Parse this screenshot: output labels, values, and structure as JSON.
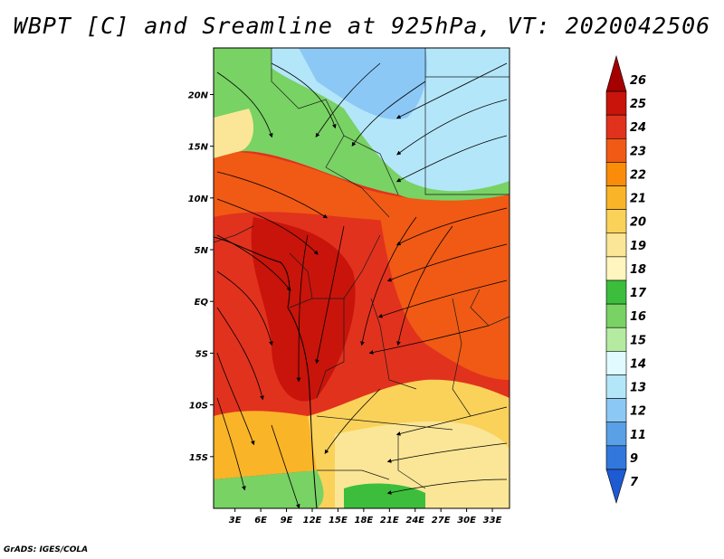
{
  "title": "WBPT [C] and Sreamline at 925hPa, VT: 2020042506",
  "credit": "GrADS: IGES/COLA",
  "map": {
    "lon_labels": [
      "3E",
      "6E",
      "9E",
      "12E",
      "15E",
      "18E",
      "21E",
      "24E",
      "27E",
      "30E",
      "33E"
    ],
    "lon_values": [
      3,
      6,
      9,
      12,
      15,
      18,
      21,
      24,
      27,
      30,
      33
    ],
    "lat_labels": [
      "20N",
      "15N",
      "10N",
      "5N",
      "EQ",
      "5S",
      "10S",
      "15S"
    ],
    "lat_values": [
      20,
      15,
      10,
      5,
      0,
      -5,
      -10,
      -15
    ],
    "lon_range": [
      0.5,
      35
    ],
    "lat_range": [
      -20,
      24.5
    ]
  },
  "colorbar": {
    "labels": [
      "26",
      "25",
      "24",
      "23",
      "22",
      "21",
      "20",
      "19",
      "18",
      "17",
      "16",
      "15",
      "14",
      "13",
      "12",
      "11",
      "9",
      "7"
    ],
    "colors": [
      "#a50000",
      "#c8140a",
      "#e1321e",
      "#f05a14",
      "#fa8c0a",
      "#fab428",
      "#fad25a",
      "#fae696",
      "#fff5be",
      "#3cbe3c",
      "#78d264",
      "#b4eba0",
      "#e1faff",
      "#b4e6fa",
      "#8cc8f5",
      "#5aa0e6",
      "#3278dc",
      "#1e5ad2"
    ]
  }
}
